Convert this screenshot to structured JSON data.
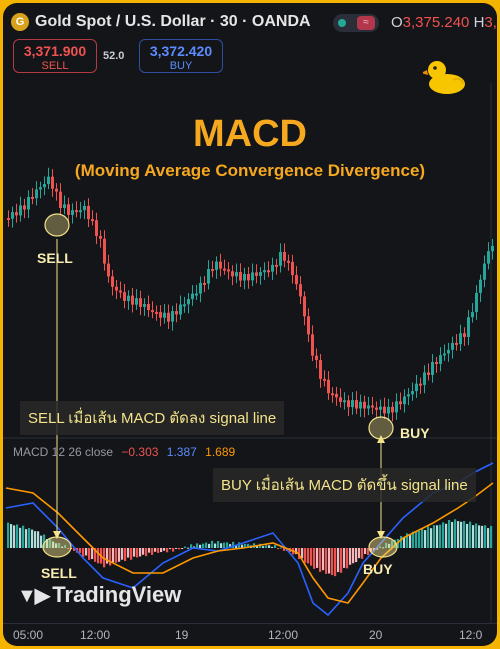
{
  "header": {
    "symbol_icon": "gold-coin-icon",
    "title": "Gold Spot / U.S. Dollar · 30 · OANDA",
    "ohlc_open_label": "O",
    "ohlc_open_value": "3,375.240",
    "ohlc_high_label": "H",
    "ohlc_high_value": "3,"
  },
  "trade": {
    "sell_price": "3,371.900",
    "sell_label": "SELL",
    "spread": "52.0",
    "buy_price": "3,372.420",
    "buy_label": "BUY"
  },
  "overlay": {
    "title": "MACD",
    "subtitle": "(Moving Average Convergence Divergence)",
    "sell_note": "SELL เมื่อเส้น MACD ตัดลง signal line",
    "buy_note": "BUY เมื่อเส้น MACD ตัดขึ้น signal line",
    "price_sell_label": "SELL",
    "price_buy_label": "BUY",
    "macd_sell_label": "SELL",
    "macd_buy_label": "BUY"
  },
  "macd_legend": {
    "name": "MACD 12 26 close",
    "histogram": "−0.303",
    "macd": "1.387",
    "signal": "1.689"
  },
  "branding": {
    "logo": "TradingView"
  },
  "x_axis": {
    "ticks": [
      "05:00",
      "12:00",
      "19",
      "12:00",
      "20",
      "12:0"
    ]
  },
  "colors": {
    "up": "#26a69a",
    "down": "#ef5350",
    "macd_line": "#2962ff",
    "signal_line": "#ff9800",
    "accent": "#f6a81f"
  }
}
